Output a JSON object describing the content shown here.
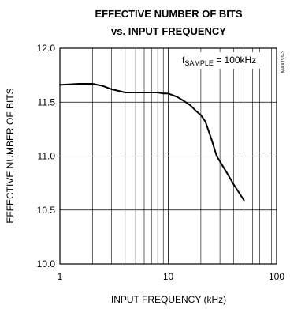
{
  "chart_data": {
    "type": "line",
    "title_line1": "EFFECTIVE NUMBER OF BITS",
    "title_line2": "vs. INPUT FREQUENCY",
    "xlabel": "INPUT FREQUENCY (kHz)",
    "ylabel": "EFFECTIVE NUMBER OF BITS",
    "x_scale": "log",
    "xlim": [
      1,
      100
    ],
    "ylim": [
      10.0,
      12.0
    ],
    "x_ticks": [
      "1",
      "10",
      "100"
    ],
    "y_ticks": [
      "12.0",
      "11.5",
      "11.0",
      "10.5",
      "10.0"
    ],
    "grid": true,
    "annotation": {
      "f": "f",
      "sub": "SAMPLE",
      "rest": " = 100kHz"
    },
    "side_code": "MAX199-3",
    "series": [
      {
        "x": [
          1,
          1.5,
          2,
          2.5,
          3,
          4,
          5,
          6,
          7,
          8,
          9,
          10,
          12,
          14,
          16,
          18,
          20,
          22,
          25,
          28,
          30,
          35,
          40,
          50
        ],
        "y": [
          11.66,
          11.67,
          11.67,
          11.65,
          11.62,
          11.59,
          11.59,
          11.59,
          11.59,
          11.59,
          11.58,
          11.58,
          11.55,
          11.51,
          11.47,
          11.42,
          11.38,
          11.32,
          11.16,
          11.0,
          10.95,
          10.84,
          10.74,
          10.59
        ]
      }
    ]
  }
}
